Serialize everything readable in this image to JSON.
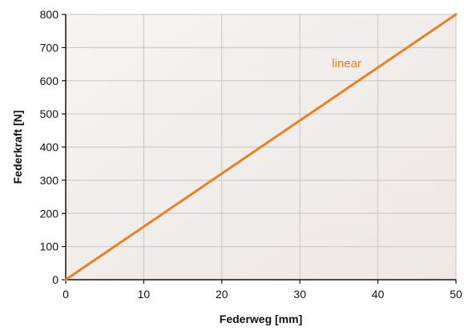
{
  "chart_data": {
    "type": "line",
    "title": "",
    "xlabel": "Federweg [mm]",
    "ylabel": "Federkraft [N]",
    "xlim": [
      0,
      50
    ],
    "ylim": [
      0,
      800
    ],
    "xticks": [
      0,
      10,
      20,
      30,
      40,
      50
    ],
    "yticks": [
      0,
      100,
      200,
      300,
      400,
      500,
      600,
      700,
      800
    ],
    "grid": true,
    "legend": "none",
    "series": [
      {
        "name": "linear",
        "label_at": [
          36,
          640
        ],
        "x": [
          0,
          50
        ],
        "y": [
          0,
          800
        ],
        "color": "#E8811E"
      }
    ]
  },
  "colors": {
    "plot_background": "#F3EFEC",
    "grid": "#C8C4C0",
    "axis": "#111111",
    "text": "#111111"
  }
}
